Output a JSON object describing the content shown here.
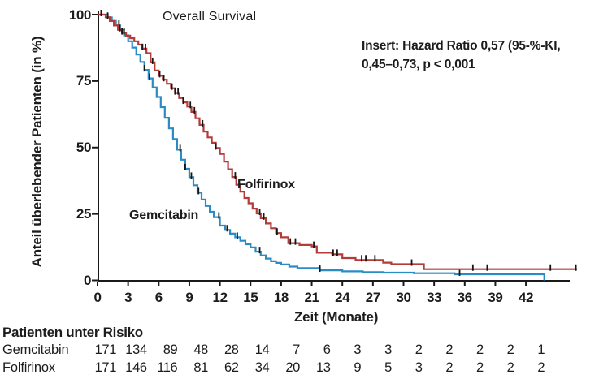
{
  "title": "Overall Survival",
  "annotation": {
    "line1": "Insert: Hazard Ratio 0,57 (95-%-KI,",
    "line2": "0,45–0,73, p < 0,001"
  },
  "axes": {
    "y_label": "Anteil überlebender Patienten (in %)",
    "x_label": "Zeit (Monate)",
    "y_ticks": [
      0,
      25,
      50,
      75,
      100
    ],
    "x_ticks": [
      0,
      3,
      6,
      9,
      12,
      15,
      18,
      21,
      24,
      27,
      30,
      33,
      36,
      39,
      42
    ],
    "axis_color": "#1a1a1a"
  },
  "chart_data": {
    "type": "line",
    "subtype": "kaplan-meier-step",
    "title": "Overall Survival",
    "xlabel": "Zeit (Monate)",
    "ylabel": "Anteil überlebender Patienten (in %)",
    "xlim": [
      0,
      47
    ],
    "ylim": [
      0,
      100
    ],
    "grid": false,
    "legend_position": "inline-curve-labels",
    "censor_color": "#151515",
    "series": [
      {
        "name": "Folfirinox",
        "color": "#b23c3a",
        "points": [
          [
            0,
            100
          ],
          [
            0.8,
            99
          ],
          [
            1.2,
            97.6
          ],
          [
            1.6,
            95.9
          ],
          [
            2,
            94.3
          ],
          [
            2.4,
            93.1
          ],
          [
            2.8,
            92.1
          ],
          [
            3.2,
            91.1
          ],
          [
            3.6,
            90
          ],
          [
            4,
            88.7
          ],
          [
            4.4,
            87.2
          ],
          [
            4.8,
            85.5
          ],
          [
            5.2,
            82
          ],
          [
            5.6,
            79
          ],
          [
            6,
            77
          ],
          [
            6.4,
            75.5
          ],
          [
            6.8,
            74
          ],
          [
            7.2,
            72.3
          ],
          [
            7.6,
            70.5
          ],
          [
            8,
            68.6
          ],
          [
            8.4,
            67
          ],
          [
            8.8,
            65.4
          ],
          [
            9.2,
            63.4
          ],
          [
            9.6,
            61
          ],
          [
            10,
            58.5
          ],
          [
            10.4,
            56
          ],
          [
            10.8,
            53.8
          ],
          [
            11.2,
            51.8
          ],
          [
            11.6,
            49.8
          ],
          [
            12,
            47.6
          ],
          [
            12.4,
            44.7
          ],
          [
            12.8,
            41.8
          ],
          [
            13.2,
            38.9
          ],
          [
            13.6,
            36
          ],
          [
            14,
            33.4
          ],
          [
            14.4,
            31
          ],
          [
            14.8,
            29
          ],
          [
            15.2,
            27
          ],
          [
            15.6,
            25.2
          ],
          [
            16,
            23.4
          ],
          [
            16.5,
            21.4
          ],
          [
            17,
            19.6
          ],
          [
            17.5,
            17.8
          ],
          [
            18,
            16.2
          ],
          [
            18.7,
            14
          ],
          [
            19.8,
            13.3
          ],
          [
            21,
            12.8
          ],
          [
            21.5,
            10.4
          ],
          [
            23,
            9.8
          ],
          [
            24,
            8.4
          ],
          [
            25.3,
            7.7
          ],
          [
            28,
            6.7
          ],
          [
            28.8,
            6.1
          ],
          [
            32,
            4.2
          ],
          [
            47,
            4.2
          ]
        ],
        "censor_months": [
          0.35,
          1.0,
          2.2,
          2.4,
          2.6,
          4.4,
          4.7,
          5.4,
          6.1,
          6.5,
          7.3,
          7.6,
          7.9,
          8.4,
          9.1,
          9.5,
          10.3,
          11.6,
          13.5,
          15.9,
          16.3,
          17.6,
          18.9,
          19.4,
          21.2,
          23.1,
          23.5,
          25.9,
          26.3,
          27.2,
          30.8,
          36.8,
          38.2,
          44.4,
          46.9
        ]
      },
      {
        "name": "Gemcitabin",
        "color": "#2a8bc5",
        "points": [
          [
            0,
            100
          ],
          [
            1,
            99
          ],
          [
            1.4,
            97.6
          ],
          [
            1.8,
            96
          ],
          [
            2.2,
            94.2
          ],
          [
            2.6,
            92.2
          ],
          [
            3,
            90
          ],
          [
            3.4,
            87.6
          ],
          [
            3.8,
            85
          ],
          [
            4.2,
            82.2
          ],
          [
            4.6,
            79.2
          ],
          [
            5,
            76
          ],
          [
            5.4,
            72.6
          ],
          [
            5.8,
            69
          ],
          [
            6.2,
            65.2
          ],
          [
            6.6,
            61.2
          ],
          [
            7,
            57.2
          ],
          [
            7.4,
            53.2
          ],
          [
            7.8,
            49.2
          ],
          [
            8.2,
            45.4
          ],
          [
            8.6,
            42
          ],
          [
            9,
            38.8
          ],
          [
            9.4,
            35.8
          ],
          [
            9.8,
            33
          ],
          [
            10.2,
            30.4
          ],
          [
            10.6,
            28
          ],
          [
            11,
            25.8
          ],
          [
            11.4,
            23.8
          ],
          [
            12,
            20.6
          ],
          [
            12.5,
            19
          ],
          [
            13,
            17.6
          ],
          [
            13.5,
            16.2
          ],
          [
            14,
            14.9
          ],
          [
            14.5,
            13.6
          ],
          [
            15,
            12.4
          ],
          [
            15.5,
            10.8
          ],
          [
            16,
            9.4
          ],
          [
            16.5,
            8.2
          ],
          [
            17,
            7.2
          ],
          [
            17.5,
            6.6
          ],
          [
            18,
            6
          ],
          [
            18.8,
            5.2
          ],
          [
            19.6,
            4.6
          ],
          [
            21.8,
            3.8
          ],
          [
            24,
            3.4
          ],
          [
            26,
            3.1
          ],
          [
            28,
            2.9
          ],
          [
            31,
            2.7
          ],
          [
            35,
            2.3
          ],
          [
            43.8,
            2.3
          ],
          [
            43.8,
            0
          ]
        ],
        "censor_months": [
          2.1,
          4.6,
          5.1,
          8.1,
          8.6,
          9.2,
          9.9,
          11.9,
          12.7,
          13.7,
          15.9,
          21.8,
          35.5
        ]
      }
    ]
  },
  "risk_table": {
    "title": "Patienten unter Risiko",
    "time_points": [
      0,
      3,
      6,
      9,
      12,
      15,
      18,
      21,
      24,
      27,
      30,
      33,
      36,
      39,
      42
    ],
    "rows": [
      {
        "label": "Gemcitabin",
        "values": [
          171,
          134,
          89,
          48,
          28,
          14,
          7,
          6,
          3,
          3,
          2,
          2,
          2,
          2,
          1
        ]
      },
      {
        "label": "Folfirinox",
        "values": [
          171,
          146,
          116,
          81,
          62,
          34,
          20,
          13,
          9,
          5,
          3,
          2,
          2,
          2,
          2
        ]
      }
    ]
  }
}
